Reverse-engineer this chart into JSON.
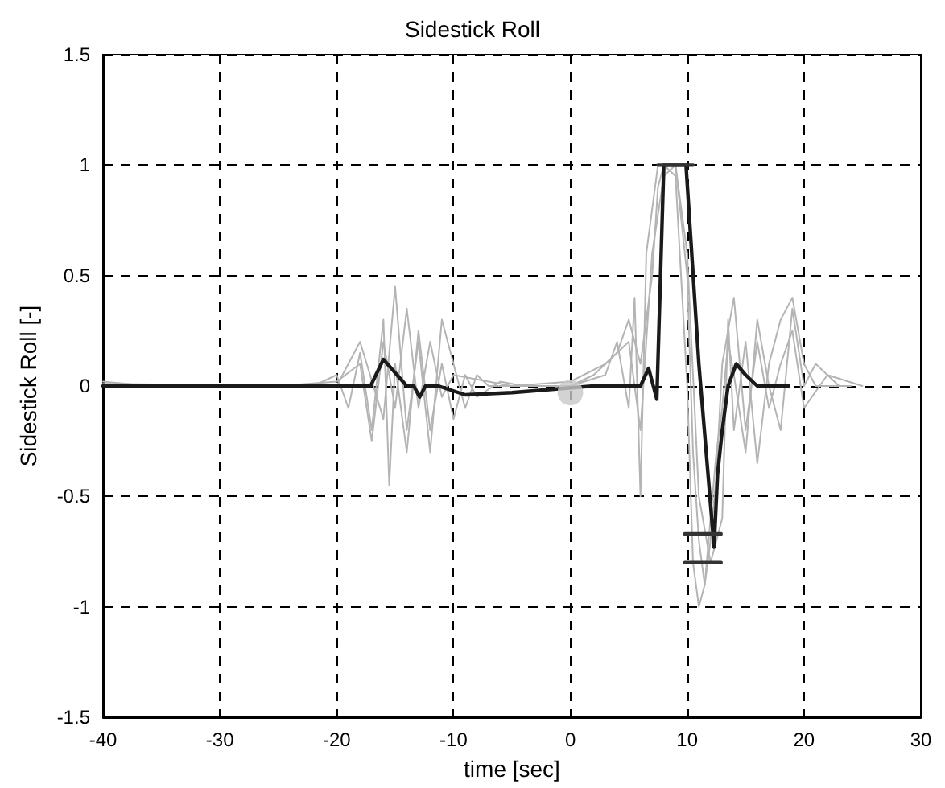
{
  "chart_data": {
    "type": "line",
    "title": "Sidestick Roll",
    "xlabel": "time [sec]",
    "ylabel": "Sidestick Roll [-]",
    "xlim": [
      -40,
      30
    ],
    "xticks": [
      -40,
      -30,
      -20,
      -10,
      0,
      10,
      20,
      30
    ],
    "ylim": [
      -1.5,
      1.5
    ],
    "yticks": [
      -1.5,
      -1,
      -0.5,
      0,
      0.5,
      1,
      1.5
    ],
    "grid": true,
    "marker": "none",
    "series": [
      {
        "color": "#b4b4b4",
        "x": [
          -40,
          -38,
          -36,
          -30,
          -22,
          -20,
          -19,
          -18,
          -17,
          -16,
          -15.5,
          -15,
          -14,
          -13,
          -12,
          -11,
          -10,
          -9,
          -8,
          -6,
          -4,
          0,
          3,
          4,
          5,
          5.5,
          6,
          6.5,
          7,
          7.5,
          8,
          9,
          10,
          10.5,
          11,
          11.5,
          12,
          12.5,
          13,
          13.5,
          14,
          15,
          16,
          17,
          18,
          19,
          20,
          21,
          22,
          23,
          24
        ],
        "values": [
          0.02,
          0.01,
          0,
          0,
          0,
          0.05,
          -0.1,
          0.15,
          -0.2,
          0.3,
          -0.45,
          0.1,
          -0.3,
          0.25,
          -0.2,
          0.1,
          -0.15,
          0.05,
          -0.05,
          0.02,
          0,
          0,
          0.05,
          0.2,
          -0.1,
          0.4,
          -0.5,
          0.6,
          0.8,
          1,
          1,
          0.95,
          0,
          -0.8,
          -1,
          -0.9,
          -0.6,
          -0.3,
          -0.1,
          0.2,
          0.05,
          -0.3,
          0.3,
          0,
          -0.2,
          0.35,
          0,
          0.1,
          0.05,
          0,
          0
        ]
      },
      {
        "color": "#b4b4b4",
        "x": [
          -40,
          -30,
          -20,
          -18,
          -16,
          -15,
          -14,
          -13,
          -12,
          -11,
          -10,
          -9,
          -8,
          -7,
          -5,
          0,
          2,
          4,
          5,
          6,
          7,
          7.5,
          8,
          9,
          10,
          10.5,
          11,
          11.5,
          12,
          12.5,
          13,
          14,
          15,
          16,
          17,
          18,
          19,
          20,
          22,
          25
        ],
        "values": [
          0,
          0,
          0,
          0.2,
          -0.15,
          0.45,
          -0.2,
          0.2,
          -0.3,
          0.3,
          0.1,
          -0.1,
          0.05,
          0,
          0,
          0,
          0.05,
          0.15,
          0.3,
          0.1,
          0.5,
          0.9,
          1,
          1,
          0.5,
          -0.3,
          -0.7,
          -0.9,
          -0.7,
          -0.4,
          0.1,
          0.4,
          -0.2,
          0.2,
          -0.1,
          0.1,
          0.25,
          -0.1,
          0.05,
          0
        ]
      },
      {
        "color": "#b4b4b4",
        "x": [
          -40,
          -25,
          -20,
          -18,
          -17,
          -16,
          -15,
          -14,
          -13,
          -12,
          -11,
          -10,
          -8,
          -5,
          0,
          3,
          5,
          6,
          7,
          8,
          9,
          10,
          11,
          12,
          13,
          13.5,
          14,
          15,
          16,
          17,
          18,
          19,
          20,
          21,
          23
        ],
        "values": [
          0.01,
          0,
          0.02,
          0.1,
          -0.25,
          0.2,
          -0.1,
          0.35,
          -0.1,
          0.2,
          -0.05,
          0.05,
          0.03,
          0,
          0.02,
          0.1,
          0.2,
          -0.2,
          0.6,
          0.95,
          1,
          0.6,
          -0.5,
          -0.8,
          -0.6,
          0.3,
          -0.2,
          0.2,
          -0.35,
          0.1,
          0.3,
          0.4,
          0.1,
          0,
          0
        ]
      },
      {
        "color": "#1a1a1a",
        "x": [
          -40,
          -17.1,
          -16,
          -14,
          -13.4,
          -12.9,
          -12.4,
          -11.3,
          -9,
          -5,
          2,
          5,
          6,
          6.7,
          7.4,
          8,
          9.9,
          11,
          12.3,
          12.6,
          13,
          13.5,
          14.2,
          15,
          16,
          18.7
        ],
        "values": [
          0,
          0,
          0.12,
          0,
          0,
          -0.05,
          0,
          0,
          -0.04,
          -0.03,
          0,
          0,
          0,
          0.08,
          -0.06,
          1,
          1,
          0.1,
          -0.73,
          -0.4,
          -0.2,
          0,
          0.1,
          0.05,
          0,
          0
        ]
      },
      {
        "color": "#333333",
        "x": [
          7.5,
          10.5
        ],
        "values": [
          1,
          1
        ]
      },
      {
        "color": "#333333",
        "x": [
          9.8,
          12.9
        ],
        "values": [
          -0.67,
          -0.67
        ]
      },
      {
        "color": "#333333",
        "x": [
          9.8,
          12.9
        ],
        "values": [
          -0.8,
          -0.8
        ]
      },
      {
        "type": "scatter",
        "marker": "circle",
        "color": "#c8c8c8",
        "x": [
          0
        ],
        "values": [
          -0.03
        ]
      }
    ]
  }
}
